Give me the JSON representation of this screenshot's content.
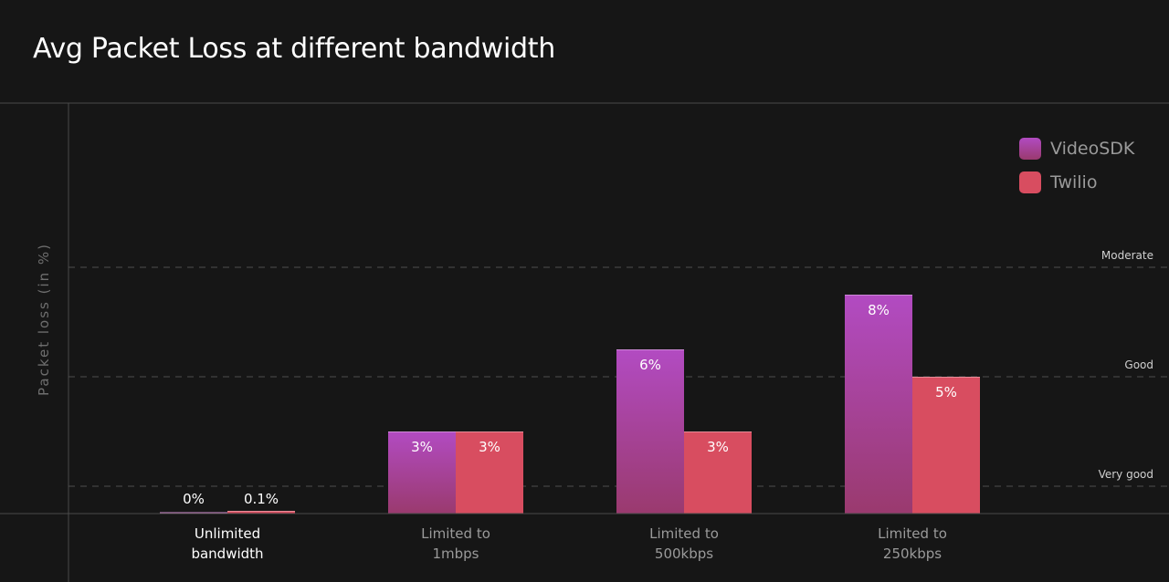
{
  "chart_data": {
    "type": "bar",
    "title": "Avg Packet Loss at different bandwidth",
    "ylabel": "Packet loss (in %)",
    "xlabel": "",
    "categories": [
      [
        "Unlimited",
        "bandwidth"
      ],
      [
        "Limited to",
        "1mbps"
      ],
      [
        "Limited to",
        "500kbps"
      ],
      [
        "Limited to",
        "250kbps"
      ]
    ],
    "series": [
      {
        "name": "VideoSDK",
        "values": [
          0,
          3,
          6,
          8
        ],
        "labels": [
          "0%",
          "3%",
          "6%",
          "8%"
        ],
        "color": "#b24bc2",
        "color_bottom": "#9a3a6e"
      },
      {
        "name": "Twilio",
        "values": [
          0.1,
          3,
          3,
          5
        ],
        "labels": [
          "0.1%",
          "3%",
          "3%",
          "5%"
        ],
        "color": "#d84d60"
      }
    ],
    "reference_lines": [
      {
        "label": "Very good",
        "value": 1
      },
      {
        "label": "Good",
        "value": 5
      },
      {
        "label": "Moderate",
        "value": 9
      }
    ],
    "highlighted_category": 0,
    "grid": false,
    "legend": "top-right"
  },
  "colors": {
    "background": "#161616",
    "axis": "#4a4a4a",
    "reference_line": "#4e4e4e",
    "reference_label": "#d0d0d0",
    "category_active": "#ffffff",
    "category_muted": "#9a9a9a",
    "value_label": "#ffffff"
  }
}
